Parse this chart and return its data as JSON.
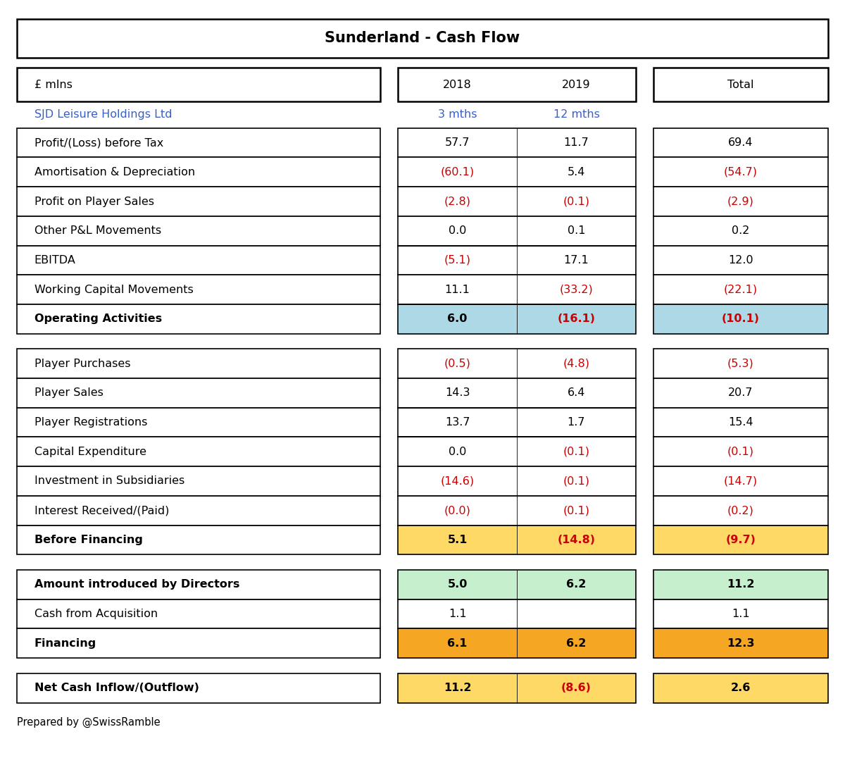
{
  "title": "Sunderland - Cash Flow",
  "subtitle_label": "£ mlns",
  "col_headers": [
    "2018",
    "2019",
    "Total"
  ],
  "sub_headers": [
    "3 mths",
    "12 mths",
    ""
  ],
  "company_name": "SJD Leisure Holdings Ltd",
  "footer": "Prepared by @SwissRamble",
  "sections": [
    {
      "rows": [
        {
          "label": "Profit/(Loss) before Tax",
          "v2018": "57.7",
          "v2019": "11.7",
          "vtotal": "69.4",
          "c2018": "black",
          "c2019": "black",
          "ctotal": "black",
          "bold": false,
          "bg": "white"
        },
        {
          "label": "Amortisation & Depreciation",
          "v2018": "(60.1)",
          "v2019": "5.4",
          "vtotal": "(54.7)",
          "c2018": "#cc0000",
          "c2019": "black",
          "ctotal": "#cc0000",
          "bold": false,
          "bg": "white"
        },
        {
          "label": "Profit on Player Sales",
          "v2018": "(2.8)",
          "v2019": "(0.1)",
          "vtotal": "(2.9)",
          "c2018": "#cc0000",
          "c2019": "#cc0000",
          "ctotal": "#cc0000",
          "bold": false,
          "bg": "white"
        },
        {
          "label": "Other P&L Movements",
          "v2018": "0.0",
          "v2019": "0.1",
          "vtotal": "0.2",
          "c2018": "black",
          "c2019": "black",
          "ctotal": "black",
          "bold": false,
          "bg": "white"
        },
        {
          "label": "EBITDA",
          "v2018": "(5.1)",
          "v2019": "17.1",
          "vtotal": "12.0",
          "c2018": "#cc0000",
          "c2019": "black",
          "ctotal": "black",
          "bold": false,
          "bg": "white"
        },
        {
          "label": "Working Capital Movements",
          "v2018": "11.1",
          "v2019": "(33.2)",
          "vtotal": "(22.1)",
          "c2018": "black",
          "c2019": "#cc0000",
          "ctotal": "#cc0000",
          "bold": false,
          "bg": "white"
        },
        {
          "label": "Operating Activities",
          "v2018": "6.0",
          "v2019": "(16.1)",
          "vtotal": "(10.1)",
          "c2018": "black",
          "c2019": "#cc0000",
          "ctotal": "#cc0000",
          "bold": true,
          "bg": "#add8e6",
          "bgtotal": "#add8e6"
        }
      ],
      "divider_after": [
        3,
        5
      ]
    },
    {
      "rows": [
        {
          "label": "Player Purchases",
          "v2018": "(0.5)",
          "v2019": "(4.8)",
          "vtotal": "(5.3)",
          "c2018": "#cc0000",
          "c2019": "#cc0000",
          "ctotal": "#cc0000",
          "bold": false,
          "bg": "white"
        },
        {
          "label": "Player Sales",
          "v2018": "14.3",
          "v2019": "6.4",
          "vtotal": "20.7",
          "c2018": "black",
          "c2019": "black",
          "ctotal": "black",
          "bold": false,
          "bg": "white"
        },
        {
          "label": "Player Registrations",
          "v2018": "13.7",
          "v2019": "1.7",
          "vtotal": "15.4",
          "c2018": "black",
          "c2019": "black",
          "ctotal": "black",
          "bold": false,
          "bg": "white"
        },
        {
          "label": "Capital Expenditure",
          "v2018": "0.0",
          "v2019": "(0.1)",
          "vtotal": "(0.1)",
          "c2018": "black",
          "c2019": "#cc0000",
          "ctotal": "#cc0000",
          "bold": false,
          "bg": "white"
        },
        {
          "label": "Investment in Subsidiaries",
          "v2018": "(14.6)",
          "v2019": "(0.1)",
          "vtotal": "(14.7)",
          "c2018": "#cc0000",
          "c2019": "#cc0000",
          "ctotal": "#cc0000",
          "bold": false,
          "bg": "white"
        },
        {
          "label": "Interest Received/(Paid)",
          "v2018": "(0.0)",
          "v2019": "(0.1)",
          "vtotal": "(0.2)",
          "c2018": "#cc0000",
          "c2019": "#cc0000",
          "ctotal": "#cc0000",
          "bold": false,
          "bg": "white"
        },
        {
          "label": "Before Financing",
          "v2018": "5.1",
          "v2019": "(14.8)",
          "vtotal": "(9.7)",
          "c2018": "black",
          "c2019": "#cc0000",
          "ctotal": "#cc0000",
          "bold": true,
          "bg": "#ffd966",
          "bgtotal": "#ffd966"
        }
      ],
      "divider_after": [
        1,
        2
      ]
    },
    {
      "rows": [
        {
          "label": "Amount introduced by Directors",
          "v2018": "5.0",
          "v2019": "6.2",
          "vtotal": "11.2",
          "c2018": "black",
          "c2019": "black",
          "ctotal": "black",
          "bold": true,
          "bg": "#c6efce",
          "bgtotal": "#c6efce"
        },
        {
          "label": "Cash from Acquisition",
          "v2018": "1.1",
          "v2019": "",
          "vtotal": "1.1",
          "c2018": "black",
          "c2019": "black",
          "ctotal": "black",
          "bold": false,
          "bg": "white"
        },
        {
          "label": "Financing",
          "v2018": "6.1",
          "v2019": "6.2",
          "vtotal": "12.3",
          "c2018": "black",
          "c2019": "black",
          "ctotal": "black",
          "bold": true,
          "bg": "#f5a623",
          "bgtotal": "#f5a623"
        }
      ],
      "divider_after": []
    }
  ],
  "summary_row": {
    "label": "Net Cash Inflow/(Outflow)",
    "v2018": "11.2",
    "v2019": "(8.6)",
    "vtotal": "2.6",
    "c2018": "black",
    "c2019": "#cc0000",
    "ctotal": "black",
    "bold": true,
    "bg": "#ffd966",
    "bgtotal": "#ffd966"
  },
  "company_color": "#3a5fc8",
  "sub_header_color": "#3a5fc8",
  "lw_outer": 1.8,
  "lw_inner": 1.2,
  "fontsize_title": 15,
  "fontsize_body": 11.5
}
